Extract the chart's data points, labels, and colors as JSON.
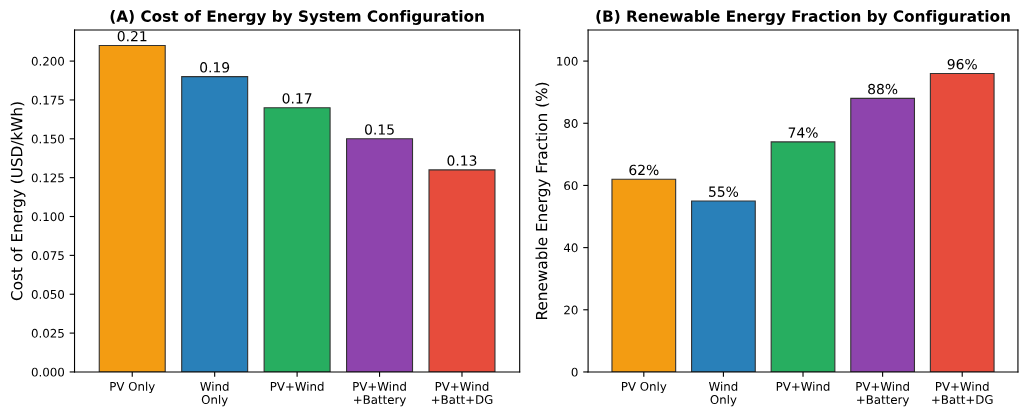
{
  "chart_data": [
    {
      "type": "bar",
      "title": "(A) Cost of Energy by System Configuration",
      "ylabel": "Cost of Energy (USD/kWh)",
      "categories": [
        "PV Only",
        "Wind\nOnly",
        "PV+Wind",
        "PV+Wind\n+Battery",
        "PV+Wind\n+Batt+DG"
      ],
      "values": [
        0.21,
        0.19,
        0.17,
        0.15,
        0.13
      ],
      "colors": [
        "#f39c12",
        "#2980b9",
        "#27ae60",
        "#8e44ad",
        "#e74c3c"
      ],
      "data_labels": true,
      "ylim": [
        0,
        0.22
      ],
      "yticks": [
        {
          "value": 0,
          "label": "0.000"
        },
        {
          "value": 0.025,
          "label": "0.025"
        },
        {
          "value": 0.05,
          "label": "0.050"
        },
        {
          "value": 0.075,
          "label": "0.075"
        },
        {
          "value": 0.1,
          "label": "0.100"
        },
        {
          "value": 0.125,
          "label": "0.125"
        },
        {
          "value": 0.15,
          "label": "0.150"
        },
        {
          "value": 0.175,
          "label": "0.175"
        },
        {
          "value": 0.2,
          "label": "0.200"
        }
      ],
      "grid": false
    },
    {
      "type": "bar",
      "title": "(B) Renewable Energy Fraction by Configuration",
      "ylabel": "Renewable Energy Fraction (%)",
      "categories": [
        "PV Only",
        "Wind\nOnly",
        "PV+Wind",
        "PV+Wind\n+Battery",
        "PV+Wind\n+Batt+DG"
      ],
      "values": [
        62,
        55,
        74,
        88,
        96
      ],
      "value_labels": [
        "62%",
        "55%",
        "74%",
        "88%",
        "96%"
      ],
      "colors": [
        "#f39c12",
        "#2980b9",
        "#27ae60",
        "#8e44ad",
        "#e74c3c"
      ],
      "ylim": [
        0,
        110
      ],
      "yticks": [
        0,
        20,
        40,
        60,
        80,
        100
      ],
      "grid": false
    }
  ]
}
